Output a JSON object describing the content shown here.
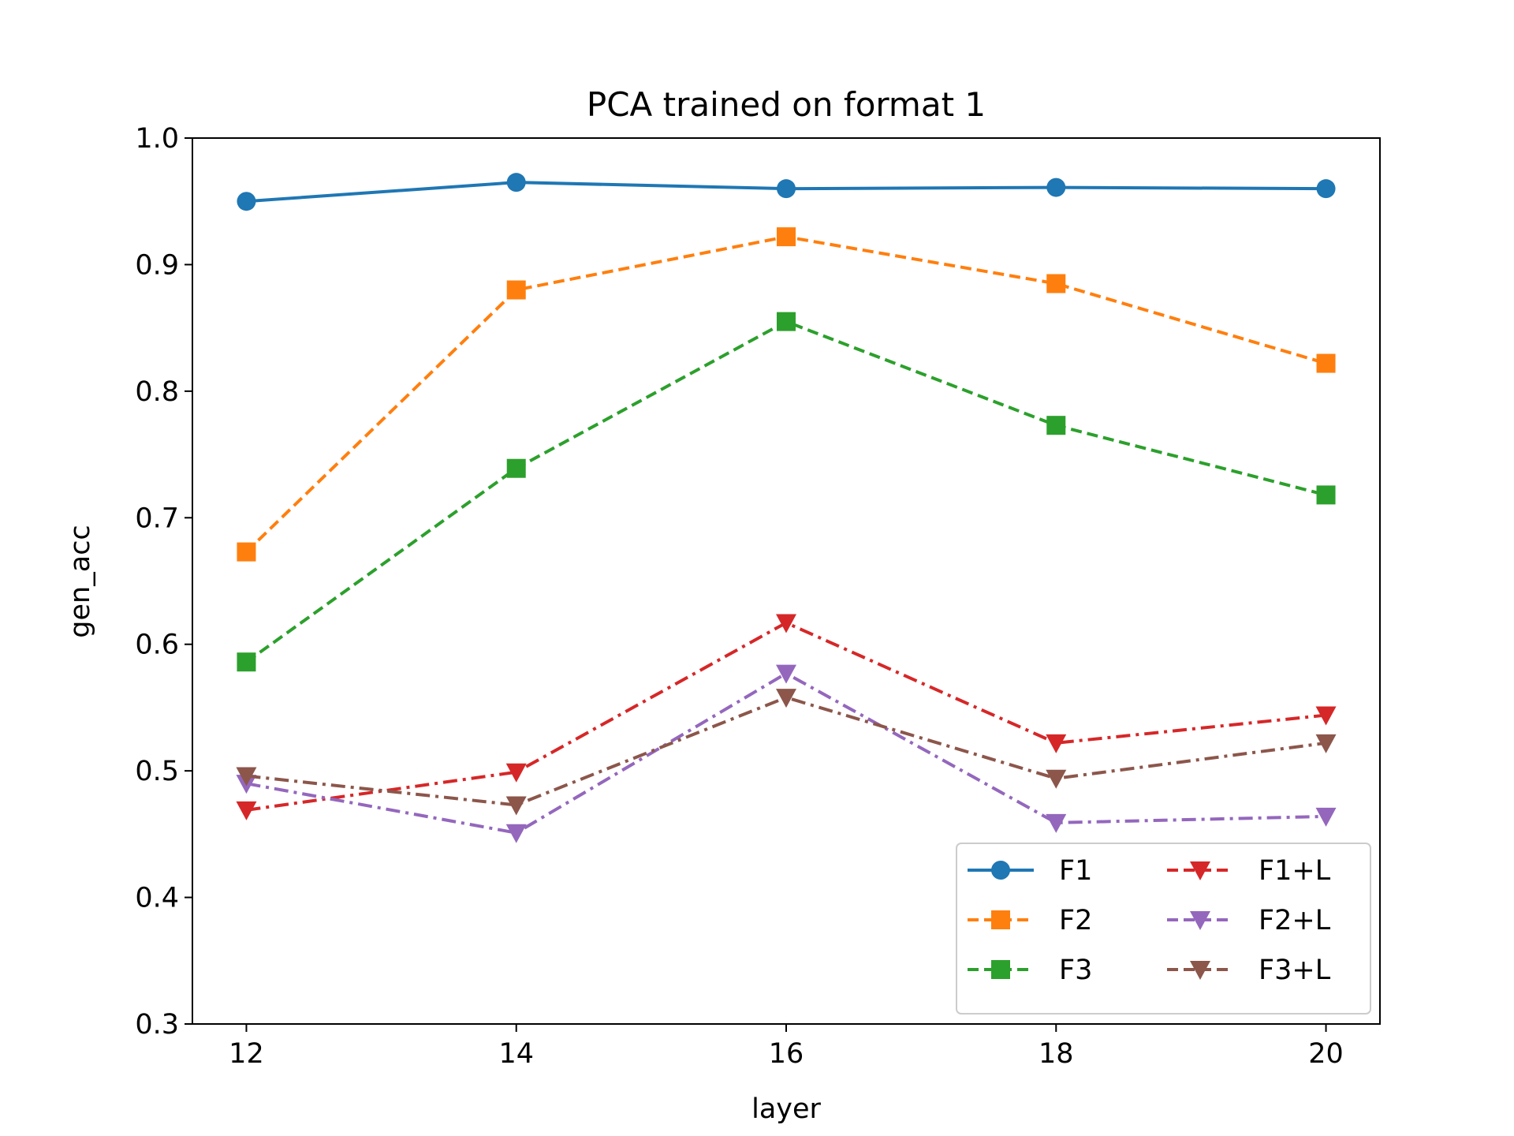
{
  "chart_data": {
    "type": "line",
    "title": "PCA trained on format 1",
    "xlabel": "layer",
    "ylabel": "gen_acc",
    "x": [
      12,
      14,
      16,
      18,
      20
    ],
    "xticks": [
      "12",
      "14",
      "16",
      "18",
      "20"
    ],
    "xlim": [
      11.6,
      20.4
    ],
    "yticks": [
      "0.3",
      "0.4",
      "0.5",
      "0.6",
      "0.7",
      "0.8",
      "0.9",
      "1.0"
    ],
    "ylim": [
      0.3,
      1.0
    ],
    "grid": false,
    "legend": {
      "placement": "bottom-right",
      "columns": 2
    },
    "series": [
      {
        "name": "F1",
        "values": [
          0.95,
          0.965,
          0.96,
          0.961,
          0.96
        ],
        "color": "#1f77b4",
        "linestyle": "solid",
        "marker": "circle"
      },
      {
        "name": "F2",
        "values": [
          0.673,
          0.88,
          0.922,
          0.885,
          0.822
        ],
        "color": "#ff7f0e",
        "linestyle": "dashed",
        "marker": "square"
      },
      {
        "name": "F3",
        "values": [
          0.586,
          0.739,
          0.855,
          0.773,
          0.718
        ],
        "color": "#2ca02c",
        "linestyle": "dashed",
        "marker": "square"
      },
      {
        "name": "F1+L",
        "values": [
          0.469,
          0.499,
          0.617,
          0.522,
          0.544
        ],
        "color": "#d62728",
        "linestyle": "dashdot",
        "marker": "triangle-down"
      },
      {
        "name": "F2+L",
        "values": [
          0.49,
          0.451,
          0.577,
          0.459,
          0.464
        ],
        "color": "#9467bd",
        "linestyle": "dashdot",
        "marker": "triangle-down"
      },
      {
        "name": "F3+L",
        "values": [
          0.496,
          0.473,
          0.558,
          0.494,
          0.522
        ],
        "color": "#8c564b",
        "linestyle": "dashdot",
        "marker": "triangle-down"
      }
    ]
  }
}
